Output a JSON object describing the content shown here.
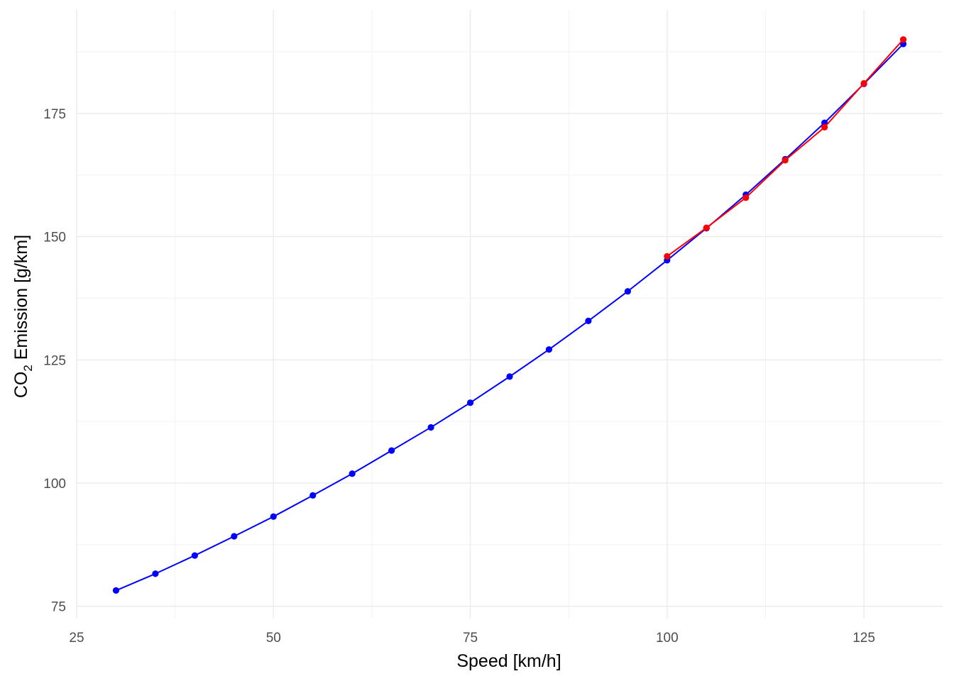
{
  "chart_data": {
    "type": "line",
    "xlabel": "Speed [km/h]",
    "ylabel": {
      "prefix": "CO",
      "subscript": "2",
      "suffix": " Emission [g/km]"
    },
    "xlim": [
      25,
      135
    ],
    "ylim": [
      72.5,
      196
    ],
    "x_ticks": [
      25,
      50,
      75,
      100,
      125
    ],
    "y_ticks": [
      75,
      100,
      125,
      150,
      175
    ],
    "grid": true,
    "legend": "none",
    "series": [
      {
        "color": "#0000ff",
        "points": [
          [
            30,
            78.2
          ],
          [
            35,
            81.6
          ],
          [
            40,
            85.3
          ],
          [
            45,
            89.2
          ],
          [
            50,
            93.2
          ],
          [
            55,
            97.5
          ],
          [
            60,
            101.9
          ],
          [
            65,
            106.6
          ],
          [
            70,
            111.3
          ],
          [
            75,
            116.3
          ],
          [
            80,
            121.6
          ],
          [
            85,
            127.1
          ],
          [
            90,
            132.9
          ],
          [
            95,
            138.9
          ],
          [
            100,
            145.2
          ],
          [
            105,
            151.7
          ],
          [
            110,
            158.5
          ],
          [
            115,
            165.7
          ],
          [
            120,
            173.1
          ],
          [
            125,
            181.0
          ],
          [
            130,
            189.1
          ]
        ]
      },
      {
        "color": "#ff0000",
        "points": [
          [
            100,
            146.0
          ],
          [
            105,
            151.8
          ],
          [
            110,
            157.9
          ],
          [
            115,
            165.5
          ],
          [
            120,
            172.2
          ],
          [
            125,
            181.1
          ],
          [
            130,
            190.0
          ]
        ]
      }
    ]
  }
}
